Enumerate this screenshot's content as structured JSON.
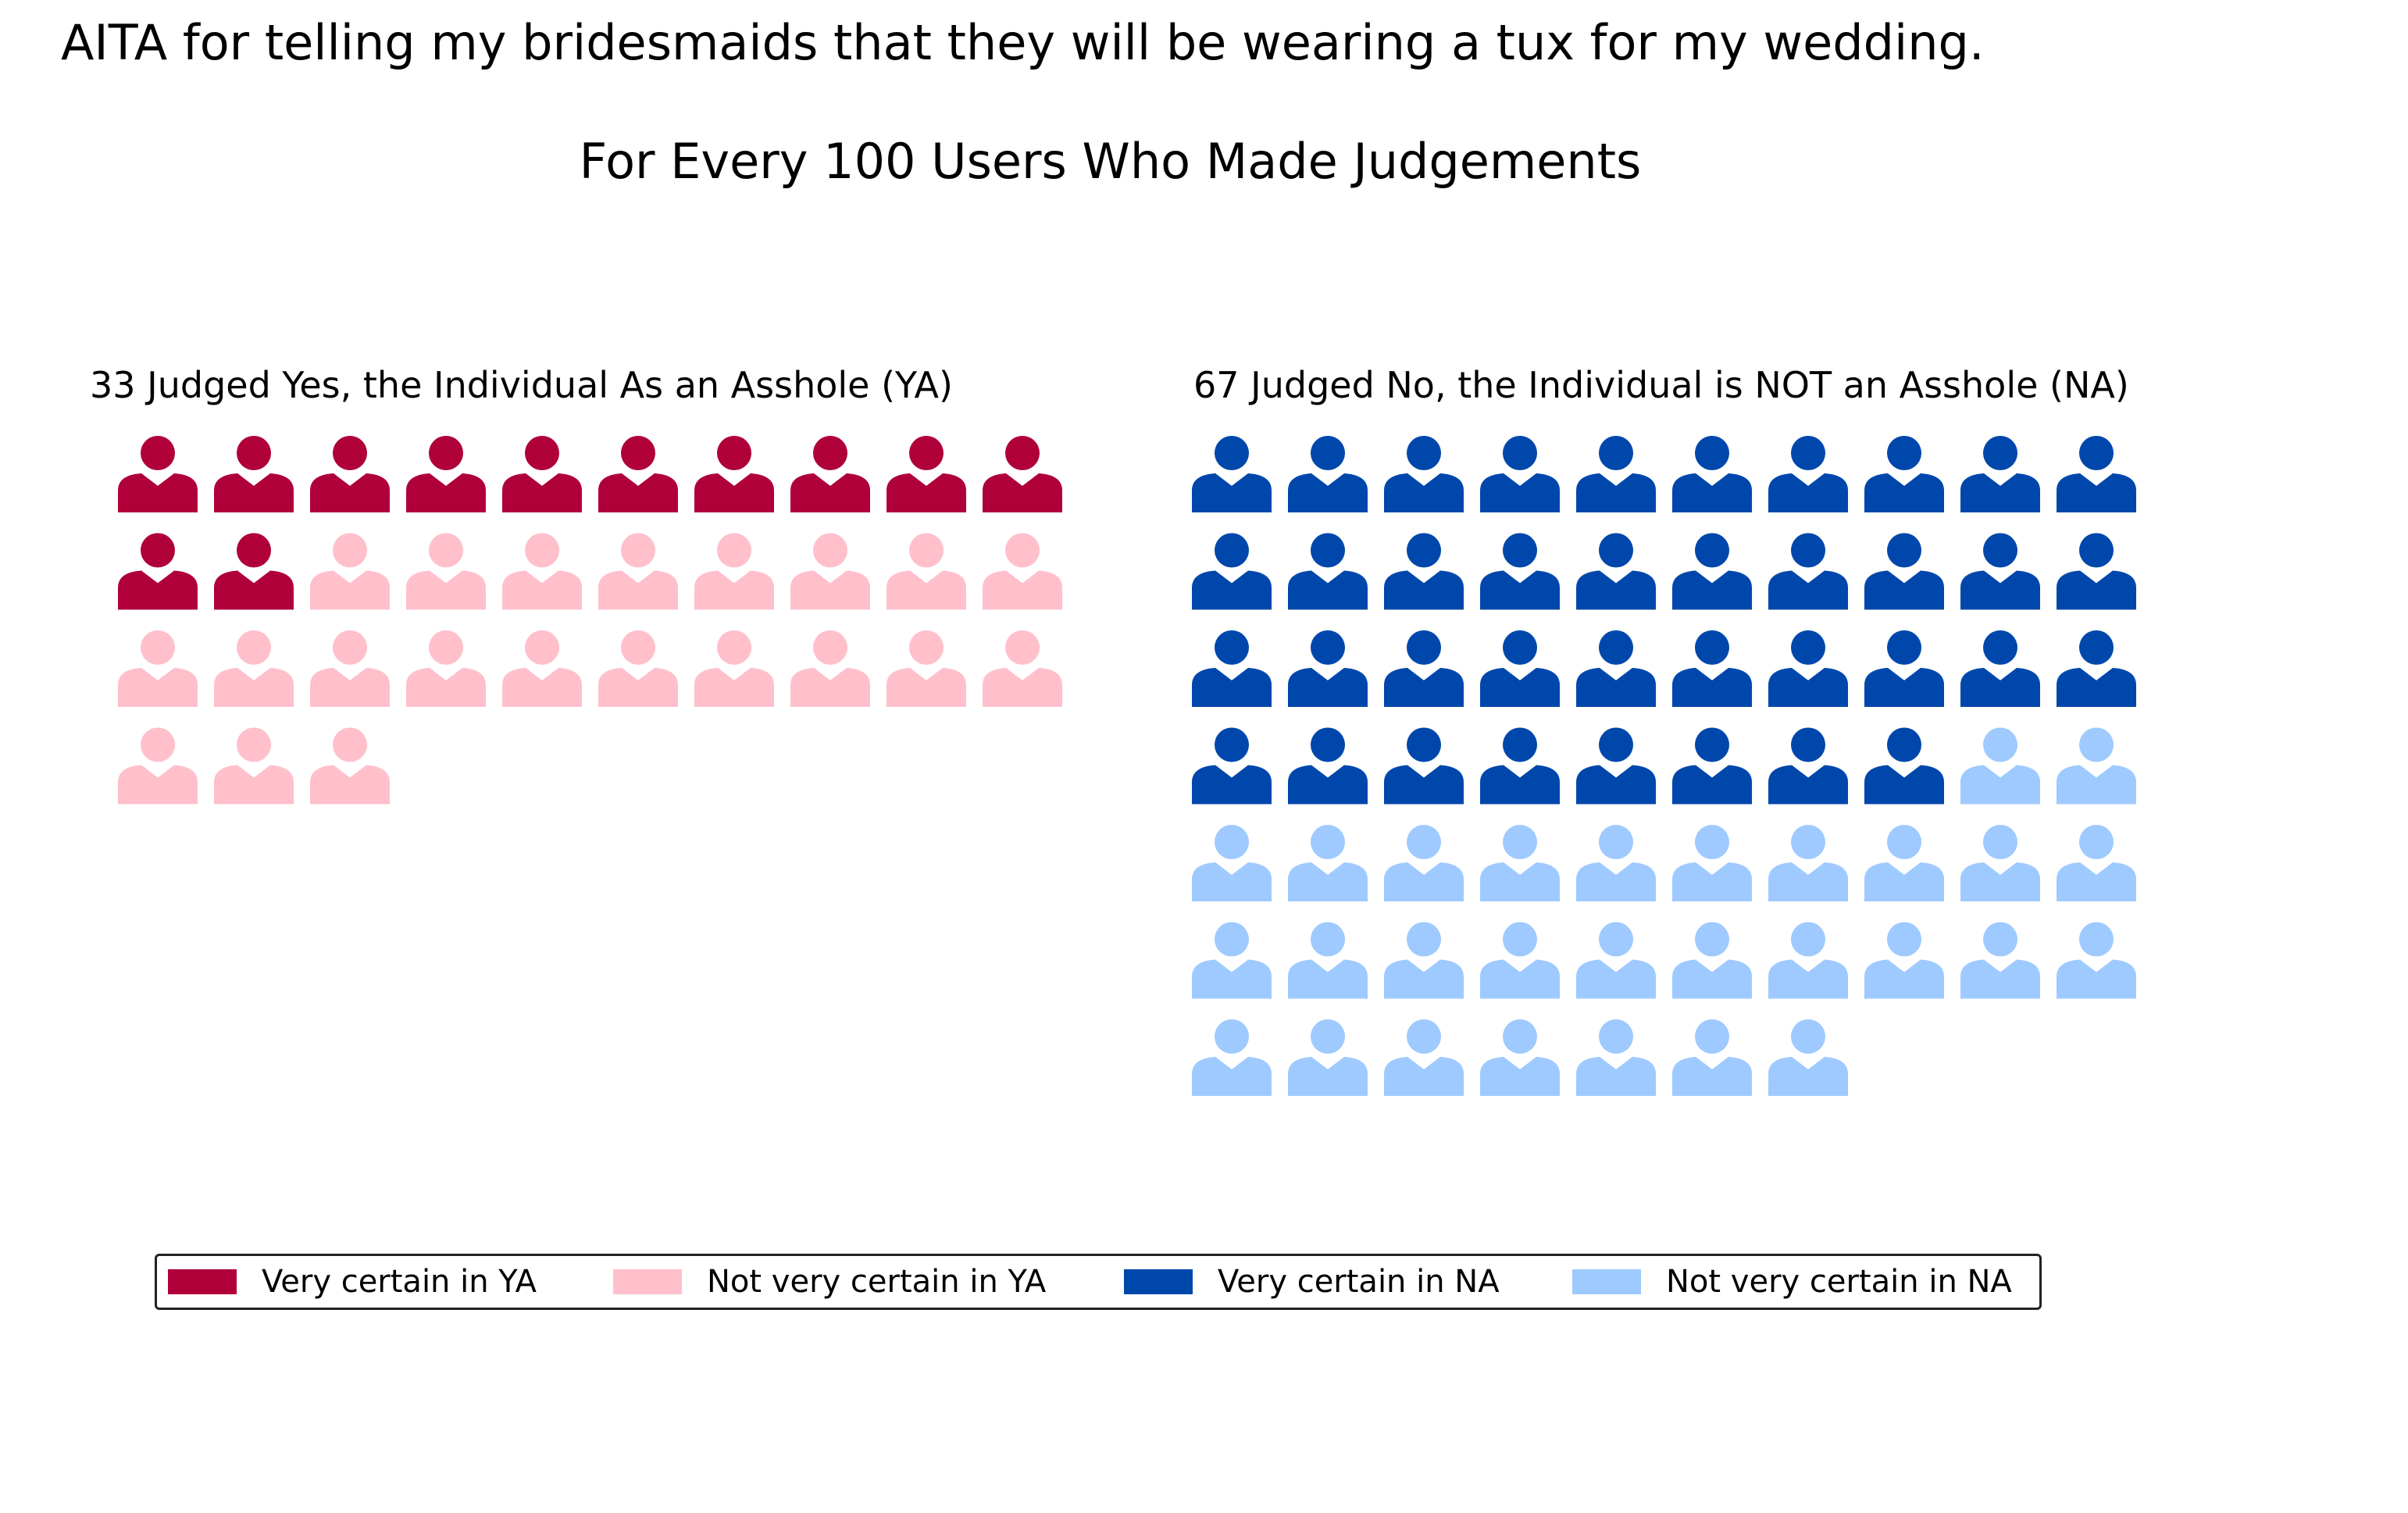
{
  "title": "AITA for telling my bridesmaids that they will be wearing a tux for my wedding.",
  "subtitle": "For Every 100 Users Who Made Judgements",
  "legend": [
    {
      "label": "Very certain in YA",
      "color": "#b0003a"
    },
    {
      "label": "Not very certain in YA",
      "color": "#ffc0cb"
    },
    {
      "label": "Very certain in NA",
      "color": "#0047ab"
    },
    {
      "label": "Not very certain in NA",
      "color": "#9ecaff"
    }
  ],
  "chart_data": {
    "type": "waffle",
    "icon": "person-icon",
    "panels": [
      {
        "title": "33 Judged Yes, the Individual As an Asshole (YA)",
        "columns": 10,
        "segments": [
          {
            "name": "Very certain in YA",
            "value": 12,
            "color": "#b0003a"
          },
          {
            "name": "Not very certain in YA",
            "value": 21,
            "color": "#ffc0cb"
          }
        ]
      },
      {
        "title": "67 Judged No, the Individual is NOT an Asshole (NA)",
        "columns": 10,
        "segments": [
          {
            "name": "Very certain in NA",
            "value": 38,
            "color": "#0047ab"
          },
          {
            "name": "Not very certain in NA",
            "value": 29,
            "color": "#9ecaff"
          }
        ]
      }
    ]
  }
}
